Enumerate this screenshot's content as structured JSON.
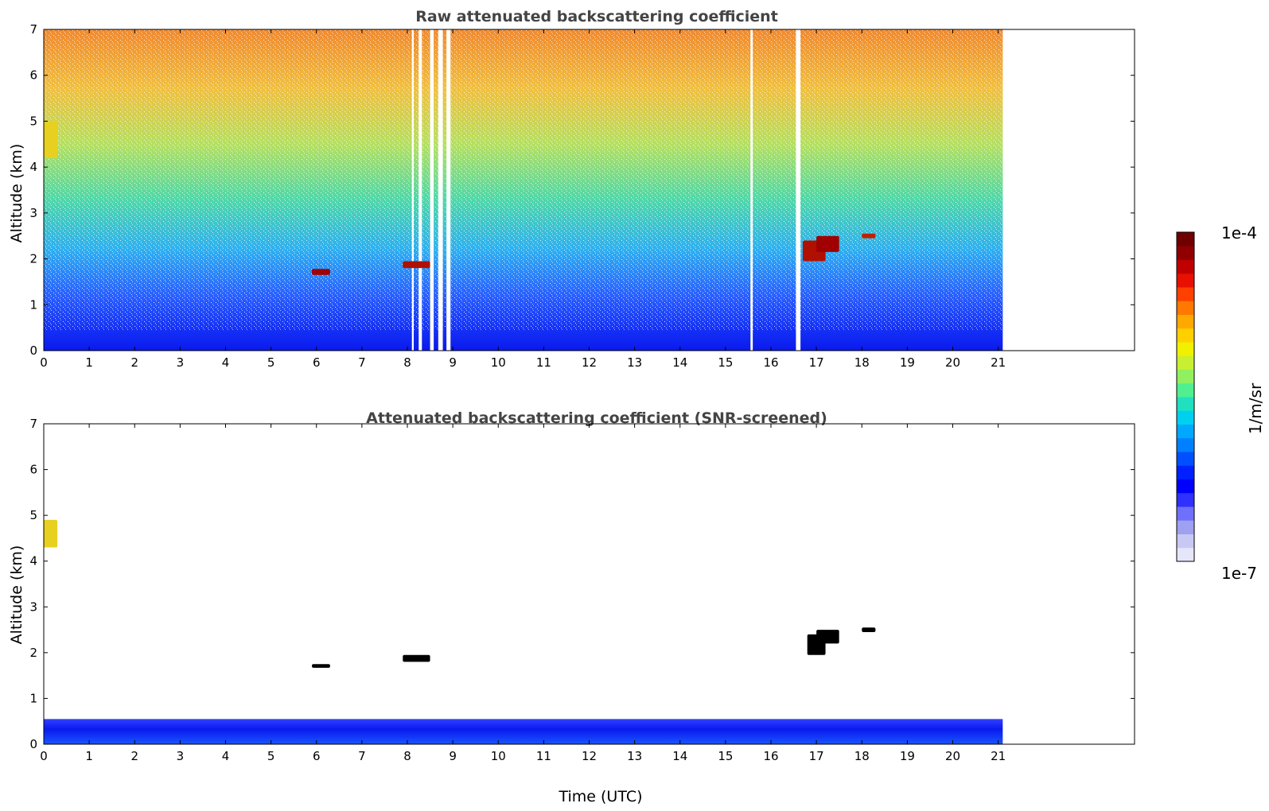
{
  "chart_data": [
    {
      "type": "heatmap",
      "title": "Raw attenuated backscattering coefficient",
      "ylabel": "Altitude (km)",
      "xlabel": "",
      "xlim": [
        0,
        24
      ],
      "ylim": [
        0,
        7
      ],
      "xticks": [
        "0",
        "1",
        "2",
        "3",
        "4",
        "5",
        "6",
        "7",
        "8",
        "9",
        "10",
        "11",
        "12",
        "13",
        "14",
        "15",
        "16",
        "17",
        "18",
        "19",
        "20",
        "21"
      ],
      "yticks": [
        "0",
        "1",
        "2",
        "3",
        "4",
        "5",
        "6",
        "7"
      ],
      "data_end_time": 21.1,
      "background_gradient": [
        {
          "altitude": 0.0,
          "color": "#0a1aee"
        },
        {
          "altitude": 0.45,
          "color": "#1530f5"
        },
        {
          "altitude": 1.2,
          "color": "#2a60ff"
        },
        {
          "altitude": 2.2,
          "color": "#2fb0f0"
        },
        {
          "altitude": 3.3,
          "color": "#50d8a8"
        },
        {
          "altitude": 4.5,
          "color": "#b5e060"
        },
        {
          "altitude": 5.7,
          "color": "#f0c040"
        },
        {
          "altitude": 7.0,
          "color": "#f08a30"
        }
      ],
      "cloud_features": [
        {
          "time": [
            0.0,
            0.3
          ],
          "altitude": [
            4.2,
            5.0
          ],
          "color": "#e8d020"
        },
        {
          "time": [
            5.9,
            6.3
          ],
          "altitude": [
            1.65,
            1.78
          ],
          "color": "#a00000"
        },
        {
          "time": [
            7.9,
            8.5
          ],
          "altitude": [
            1.8,
            1.95
          ],
          "color": "#b01000"
        },
        {
          "time": [
            16.7,
            17.2
          ],
          "altitude": [
            1.95,
            2.4
          ],
          "color": "#b01000"
        },
        {
          "time": [
            17.0,
            17.5
          ],
          "altitude": [
            2.15,
            2.5
          ],
          "color": "#a00000"
        },
        {
          "time": [
            18.0,
            18.3
          ],
          "altitude": [
            2.45,
            2.55
          ],
          "color": "#c02000"
        }
      ],
      "data_gaps": [
        {
          "time": [
            8.25,
            8.32
          ]
        },
        {
          "time": [
            8.5,
            8.58
          ]
        },
        {
          "time": [
            8.68,
            8.78
          ]
        },
        {
          "time": [
            8.86,
            8.95
          ]
        },
        {
          "time": [
            8.1,
            8.14
          ]
        },
        {
          "time": [
            16.55,
            16.65
          ]
        },
        {
          "time": [
            15.55,
            15.6
          ]
        }
      ],
      "grid": false
    },
    {
      "type": "heatmap",
      "title": "Attenuated backscattering coefficient (SNR-screened)",
      "ylabel": "Altitude (km)",
      "xlabel": "Time (UTC)",
      "xlim": [
        0,
        24
      ],
      "ylim": [
        0,
        7
      ],
      "xticks": [
        "0",
        "1",
        "2",
        "3",
        "4",
        "5",
        "6",
        "7",
        "8",
        "9",
        "10",
        "11",
        "12",
        "13",
        "14",
        "15",
        "16",
        "17",
        "18",
        "19",
        "20",
        "21"
      ],
      "yticks": [
        "0",
        "1",
        "2",
        "3",
        "4",
        "5",
        "6",
        "7"
      ],
      "data_end_time": 21.1,
      "boundary_layer_top_km": 0.55,
      "cloud_features": [
        {
          "time": [
            0.0,
            0.3
          ],
          "altitude": [
            4.3,
            4.9
          ],
          "color": "#e8d020"
        },
        {
          "time": [
            5.9,
            6.3
          ],
          "altitude": [
            1.67,
            1.75
          ],
          "color": "#000000"
        },
        {
          "time": [
            7.9,
            8.5
          ],
          "altitude": [
            1.8,
            1.95
          ],
          "color": "#000000"
        },
        {
          "time": [
            16.8,
            17.2
          ],
          "altitude": [
            1.95,
            2.4
          ],
          "color": "#000000"
        },
        {
          "time": [
            17.0,
            17.5
          ],
          "altitude": [
            2.2,
            2.5
          ],
          "color": "#000000"
        },
        {
          "time": [
            18.0,
            18.3
          ],
          "altitude": [
            2.45,
            2.55
          ],
          "color": "#000000"
        }
      ],
      "grid": false
    }
  ],
  "colorbar": {
    "label": "1/m/sr",
    "max_label": "1e-4",
    "min_label": "1e-7",
    "colors": [
      "#e6e6fa",
      "#c8c8f5",
      "#a0a0f0",
      "#7070ff",
      "#3030ff",
      "#0000ff",
      "#0020ff",
      "#0050ff",
      "#0080ff",
      "#00a8ff",
      "#00d0f0",
      "#20e0c0",
      "#50f090",
      "#90f060",
      "#c8f030",
      "#f0f000",
      "#ffd000",
      "#ffa800",
      "#ff7800",
      "#ff4000",
      "#e81000",
      "#c00000",
      "#900000",
      "#700000"
    ]
  }
}
